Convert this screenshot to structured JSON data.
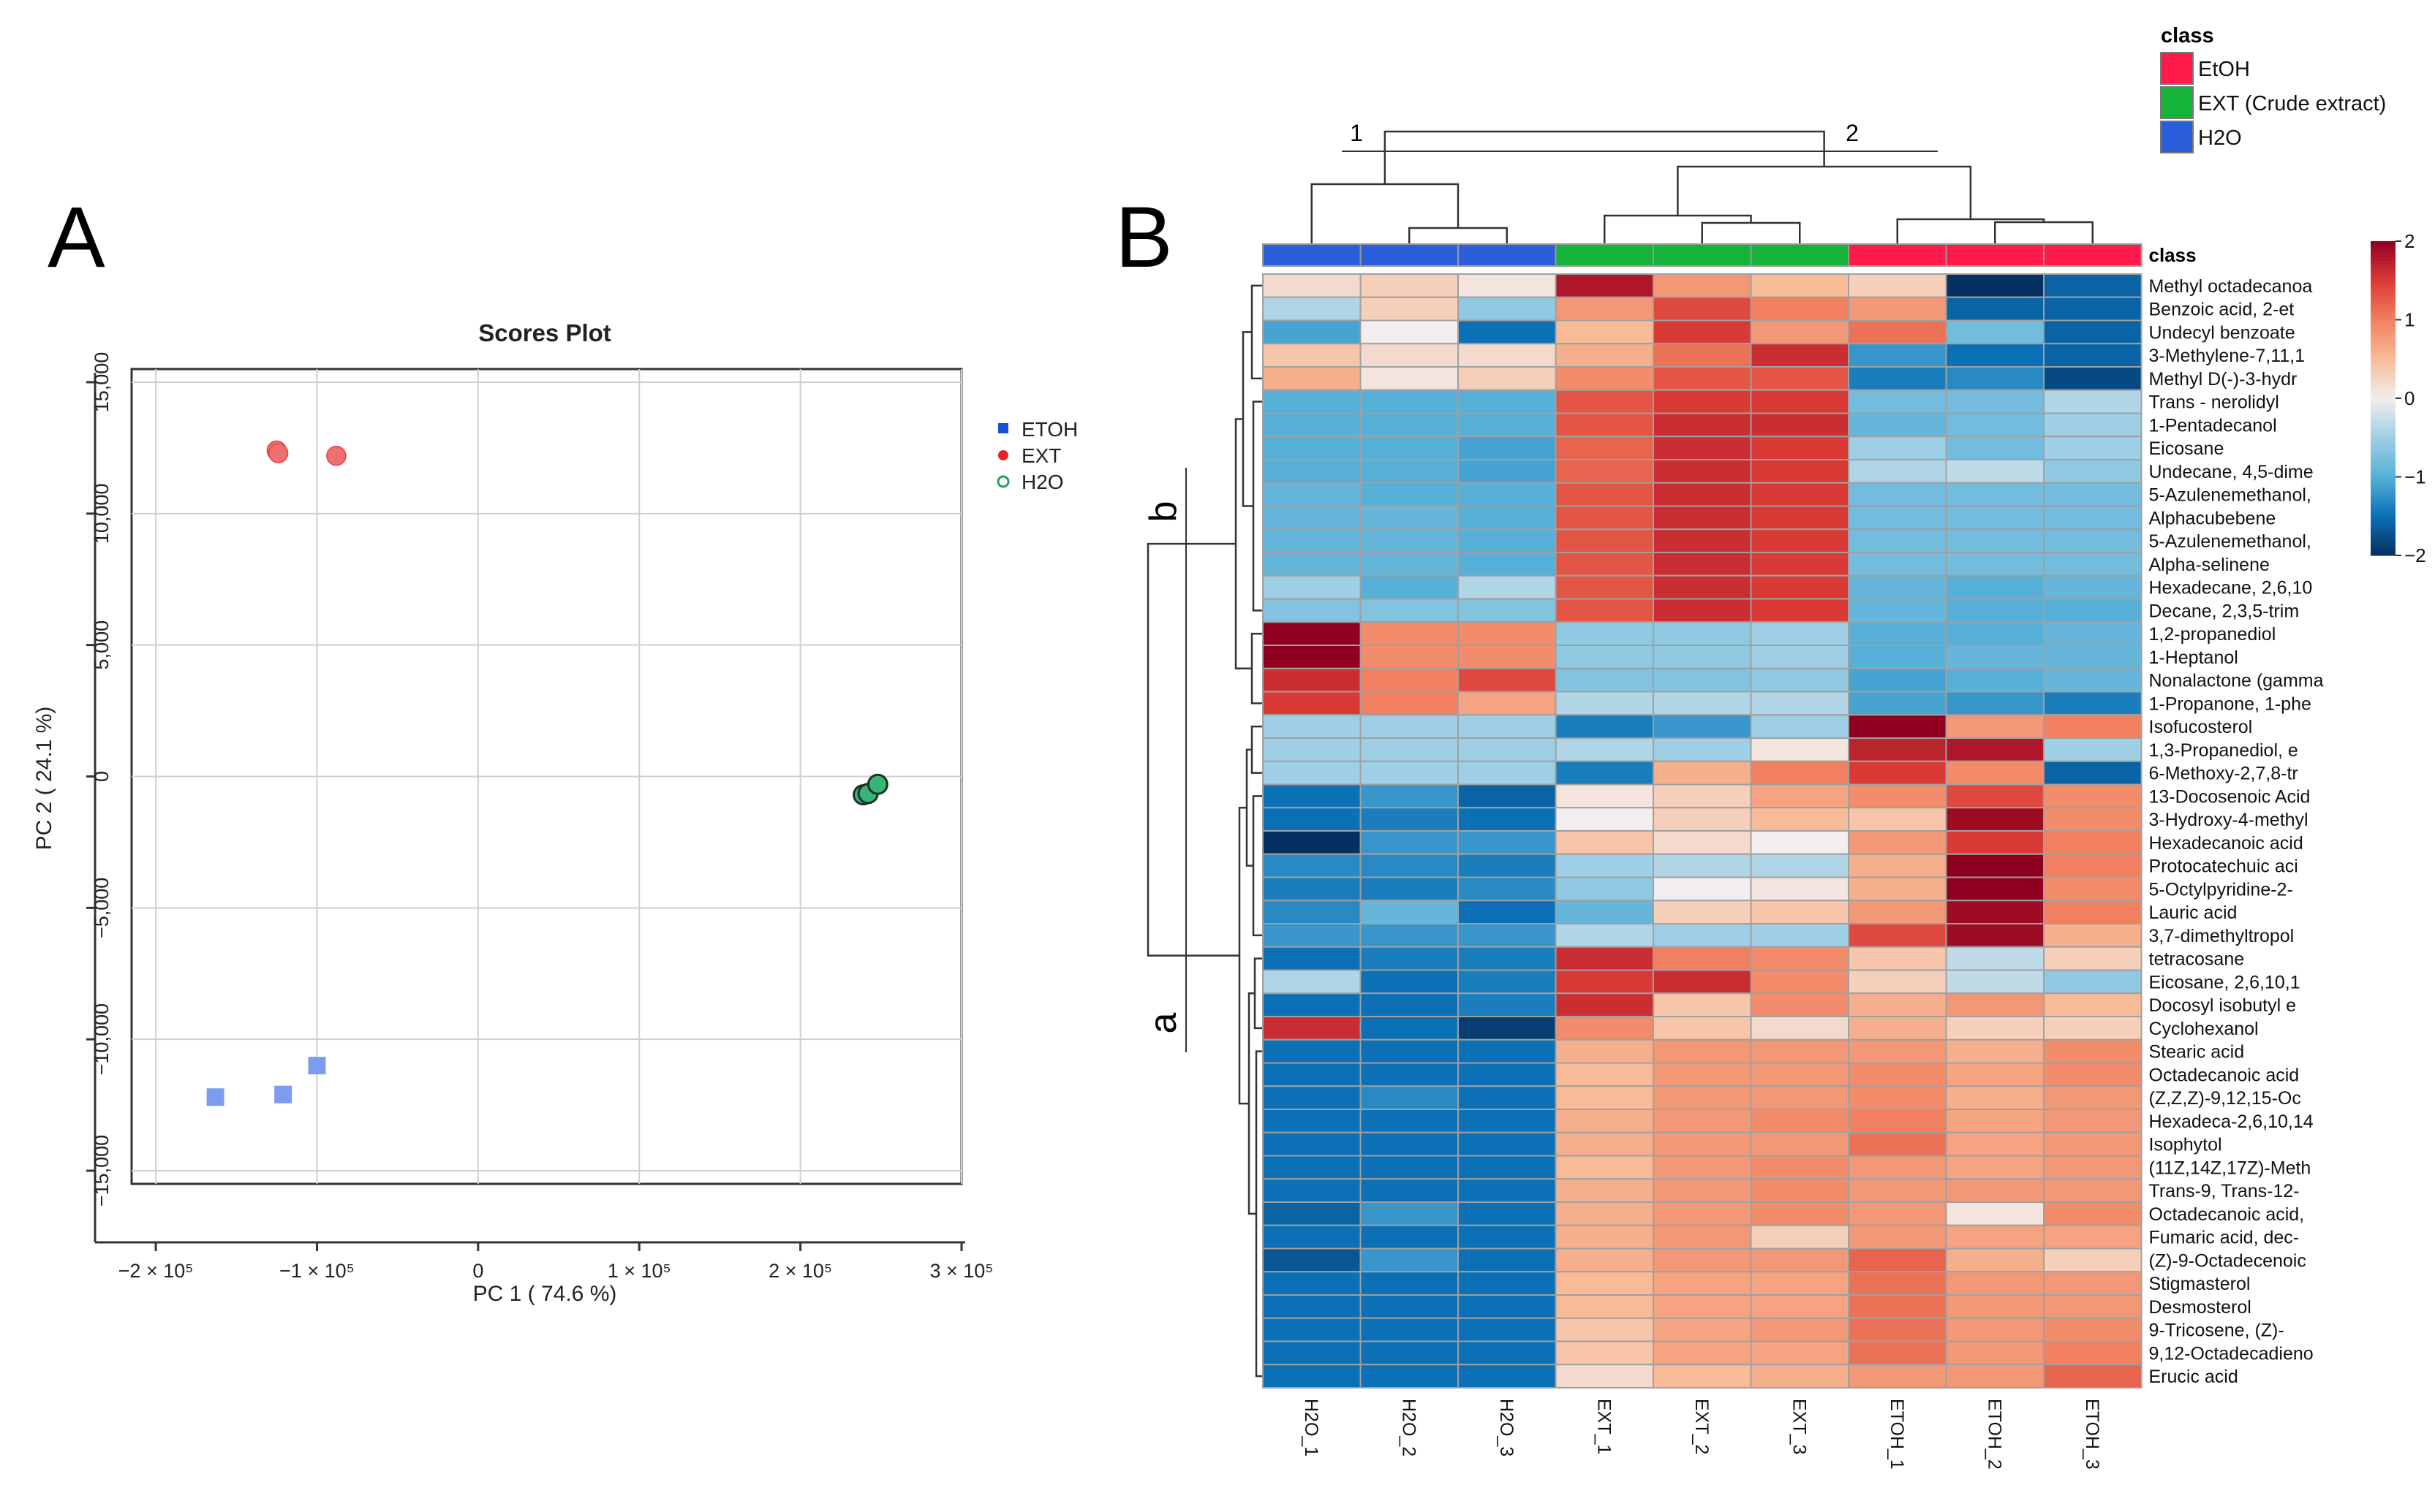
{
  "panel_labels": {
    "a": "A",
    "b": "B"
  },
  "chart_data": [
    {
      "type": "scatter",
      "title": "Scores Plot",
      "xlabel": "PC 1 ( 74.6 %)",
      "ylabel": "PC 2 ( 24.1 %)",
      "xlim": [
        -215000,
        300000
      ],
      "ylim": [
        -15500,
        15500
      ],
      "grid": true,
      "legend_position": "top-right, outside plot",
      "x_ticks": [
        {
          "value": -200000,
          "label": "−2 × 10⁵"
        },
        {
          "value": -100000,
          "label": "−1 × 10⁵"
        },
        {
          "value": 0,
          "label": "0"
        },
        {
          "value": 100000,
          "label": "1 × 10⁵"
        },
        {
          "value": 200000,
          "label": "2 × 10⁵"
        },
        {
          "value": 300000,
          "label": "3 × 10⁵"
        }
      ],
      "y_ticks": [
        {
          "value": 15000,
          "label": "15,000"
        },
        {
          "value": 10000,
          "label": "10,000"
        },
        {
          "value": 5000,
          "label": "5,000"
        },
        {
          "value": 0,
          "label": "0"
        },
        {
          "value": -5000,
          "label": "−5,000"
        },
        {
          "value": -10000,
          "label": "−10,000"
        },
        {
          "value": -15000,
          "label": "−15,000"
        }
      ],
      "series": [
        {
          "name": "ETOH",
          "marker": "square",
          "color": "#1a4fd6",
          "point_color": "#7d9cf0",
          "points": [
            {
              "x": -163000,
              "y": -12200
            },
            {
              "x": -121000,
              "y": -12100
            },
            {
              "x": -100000,
              "y": -11000
            }
          ]
        },
        {
          "name": "EXT",
          "marker": "circle",
          "color": "#e8222a",
          "point_color": "#f07070",
          "points": [
            {
              "x": -125000,
              "y": 12400
            },
            {
              "x": -124000,
              "y": 12300
            },
            {
              "x": -88000,
              "y": 12200
            }
          ]
        },
        {
          "name": "H2O",
          "marker": "open-circle",
          "color": "#22a060",
          "point_color": "#38b478",
          "points": [
            {
              "x": 239000,
              "y": -700
            },
            {
              "x": 242000,
              "y": -650
            },
            {
              "x": 248000,
              "y": -300
            }
          ]
        }
      ]
    },
    {
      "type": "heatmap",
      "color_scale": {
        "min": -2,
        "max": 2,
        "ticks": [
          {
            "value": 2,
            "label": "2"
          },
          {
            "value": 1,
            "label": "1"
          },
          {
            "value": 0,
            "label": "0"
          },
          {
            "value": -1,
            "label": "−1"
          },
          {
            "value": -2,
            "label": "−2"
          }
        ],
        "stops": [
          {
            "value": -2,
            "color": "#053061"
          },
          {
            "value": -1.5,
            "color": "#0b70b5"
          },
          {
            "value": -1,
            "color": "#56b0d8"
          },
          {
            "value": -0.5,
            "color": "#9fcfe4"
          },
          {
            "value": 0,
            "color": "#f2eeee"
          },
          {
            "value": 0.5,
            "color": "#f8bb98"
          },
          {
            "value": 1,
            "color": "#f0805f"
          },
          {
            "value": 1.5,
            "color": "#da3a36"
          },
          {
            "value": 2,
            "color": "#8f0020"
          }
        ]
      },
      "class_header_label": "class",
      "legend": {
        "title": "class",
        "entries": [
          {
            "label": "EtOH",
            "color": "#ff1a4a"
          },
          {
            "label": "EXT (Crude extract)",
            "color": "#16b33a"
          },
          {
            "label": "H2O",
            "color": "#2b5fd9"
          }
        ]
      },
      "columns": [
        "H2O_1",
        "H2O_2",
        "H2O_3",
        "EXT_1",
        "EXT_2",
        "EXT_3",
        "ETOH_1",
        "ETOH_2",
        "ETOH_3"
      ],
      "column_classes": [
        "H2O",
        "H2O",
        "H2O",
        "EXT",
        "EXT",
        "EXT",
        "EtOH",
        "EtOH",
        "EtOH"
      ],
      "class_colors": {
        "H2O": "#2b5fd9",
        "EXT": "#16b33a",
        "EtOH": "#ff1a4a"
      },
      "column_cluster_labels": [
        "1",
        "2"
      ],
      "row_cluster_labels": [
        "b",
        "a"
      ],
      "rows": [
        {
          "name": "Methyl octadecanoa",
          "values": [
            0.2,
            0.3,
            0.1,
            1.8,
            0.8,
            0.5,
            0.3,
            -2.0,
            -1.6
          ]
        },
        {
          "name": "Benzoic acid, 2-et",
          "values": [
            -0.4,
            0.3,
            -0.6,
            0.8,
            1.4,
            1.0,
            0.8,
            -1.6,
            -1.6
          ]
        },
        {
          "name": "Undecyl benzoate",
          "values": [
            -1.1,
            0.0,
            -1.5,
            0.5,
            1.5,
            0.8,
            1.1,
            -0.8,
            -1.6
          ]
        },
        {
          "name": "3-Methylene-7,11,1",
          "values": [
            0.4,
            0.2,
            0.2,
            0.6,
            1.1,
            1.6,
            -1.2,
            -1.5,
            -1.6
          ]
        },
        {
          "name": "Methyl D(-)-3-hydr",
          "values": [
            0.6,
            0.1,
            0.3,
            0.9,
            1.3,
            1.3,
            -1.4,
            -1.3,
            -1.8
          ]
        },
        {
          "name": "Trans - nerolidyl",
          "values": [
            -1.0,
            -1.0,
            -1.0,
            1.3,
            1.5,
            1.5,
            -0.8,
            -0.8,
            -0.4
          ]
        },
        {
          "name": "1-Pentadecanol",
          "values": [
            -1.0,
            -1.0,
            -1.0,
            1.3,
            1.6,
            1.6,
            -0.9,
            -0.8,
            -0.5
          ]
        },
        {
          "name": "Eicosane",
          "values": [
            -1.0,
            -1.0,
            -1.1,
            1.2,
            1.6,
            1.5,
            -0.5,
            -0.8,
            -0.5
          ]
        },
        {
          "name": "Undecane, 4,5-dime",
          "values": [
            -1.0,
            -1.0,
            -1.1,
            1.2,
            1.6,
            1.5,
            -0.4,
            -0.3,
            -0.6
          ]
        },
        {
          "name": "5-Azulenemethanol,",
          "values": [
            -0.9,
            -1.0,
            -1.0,
            1.3,
            1.6,
            1.5,
            -0.8,
            -0.8,
            -0.8
          ]
        },
        {
          "name": "Alphacubebene",
          "values": [
            -0.9,
            -0.9,
            -1.0,
            1.3,
            1.6,
            1.5,
            -0.8,
            -0.8,
            -0.8
          ]
        },
        {
          "name": "5-Azulenemethanol,",
          "values": [
            -0.9,
            -0.9,
            -1.0,
            1.3,
            1.6,
            1.5,
            -0.8,
            -0.8,
            -0.8
          ]
        },
        {
          "name": "Alpha-selinene",
          "values": [
            -0.9,
            -0.9,
            -1.0,
            1.3,
            1.6,
            1.5,
            -0.8,
            -0.8,
            -0.8
          ]
        },
        {
          "name": "Hexadecane, 2,6,10",
          "values": [
            -0.5,
            -1.0,
            -0.4,
            1.3,
            1.6,
            1.5,
            -0.9,
            -1.0,
            -0.9
          ]
        },
        {
          "name": "Decane, 2,3,5-trim",
          "values": [
            -0.7,
            -0.7,
            -0.7,
            1.3,
            1.6,
            1.5,
            -0.9,
            -1.0,
            -1.0
          ]
        },
        {
          "name": "1,2-propanediol",
          "values": [
            2.0,
            0.9,
            0.9,
            -0.6,
            -0.6,
            -0.5,
            -1.0,
            -1.0,
            -0.9
          ]
        },
        {
          "name": "1-Heptanol",
          "values": [
            2.0,
            0.9,
            0.9,
            -0.6,
            -0.6,
            -0.5,
            -1.0,
            -0.9,
            -0.9
          ]
        },
        {
          "name": "Nonalactone (gamma",
          "values": [
            1.6,
            1.0,
            1.4,
            -0.7,
            -0.7,
            -0.6,
            -1.1,
            -1.0,
            -0.9
          ]
        },
        {
          "name": "1-Propanone, 1-phe",
          "values": [
            1.5,
            1.0,
            0.7,
            -0.4,
            -0.4,
            -0.4,
            -1.1,
            -1.2,
            -1.4
          ]
        },
        {
          "name": "Isofucosterol",
          "values": [
            -0.5,
            -0.5,
            -0.5,
            -1.4,
            -1.2,
            -0.5,
            2.0,
            0.8,
            1.0
          ]
        },
        {
          "name": "1,3-Propanediol, e",
          "values": [
            -0.5,
            -0.5,
            -0.5,
            -0.4,
            -0.5,
            0.1,
            1.7,
            1.8,
            -0.5
          ]
        },
        {
          "name": "6-Methoxy-2,7,8-tr",
          "values": [
            -0.5,
            -0.5,
            -0.5,
            -1.4,
            0.6,
            1.0,
            1.5,
            0.9,
            -1.6
          ]
        },
        {
          "name": "13-Docosenoic Acid",
          "values": [
            -1.5,
            -1.2,
            -1.6,
            0.1,
            0.3,
            0.7,
            0.9,
            1.4,
            0.9
          ]
        },
        {
          "name": "3-Hydroxy-4-methyl",
          "values": [
            -1.5,
            -1.4,
            -1.5,
            0.0,
            0.3,
            0.5,
            0.4,
            1.9,
            0.9
          ]
        },
        {
          "name": "Hexadecanoic acid",
          "values": [
            -2.0,
            -1.2,
            -1.2,
            0.4,
            0.2,
            0.0,
            0.8,
            1.5,
            1.0
          ]
        },
        {
          "name": "Protocatechuic aci",
          "values": [
            -1.3,
            -1.3,
            -1.4,
            -0.5,
            -0.4,
            -0.4,
            0.6,
            2.0,
            1.0
          ]
        },
        {
          "name": "5-Octylpyridine-2-",
          "values": [
            -1.4,
            -1.4,
            -1.3,
            -0.6,
            0.0,
            0.1,
            0.6,
            2.0,
            0.9
          ]
        },
        {
          "name": "Lauric acid",
          "values": [
            -1.3,
            -0.9,
            -1.5,
            -0.9,
            0.3,
            0.4,
            0.8,
            1.9,
            1.0
          ]
        },
        {
          "name": "3,7-dimethyltropol",
          "values": [
            -1.2,
            -1.2,
            -1.2,
            -0.4,
            -0.5,
            -0.5,
            1.4,
            1.9,
            0.6
          ]
        },
        {
          "name": "tetracosane",
          "values": [
            -1.5,
            -1.4,
            -1.4,
            1.6,
            1.0,
            0.9,
            0.4,
            -0.3,
            0.3
          ]
        },
        {
          "name": "Eicosane, 2,6,10,1",
          "values": [
            -0.4,
            -1.5,
            -1.4,
            1.5,
            1.6,
            0.9,
            0.3,
            -0.3,
            -0.6
          ]
        },
        {
          "name": "Docosyl isobutyl e",
          "values": [
            -1.5,
            -1.5,
            -1.4,
            1.6,
            0.4,
            0.9,
            0.6,
            0.8,
            0.5
          ]
        },
        {
          "name": "Cyclohexanol",
          "values": [
            1.6,
            -1.5,
            -1.9,
            0.9,
            0.4,
            0.2,
            0.6,
            0.3,
            0.3
          ]
        },
        {
          "name": "Stearic acid",
          "values": [
            -1.5,
            -1.5,
            -1.5,
            0.6,
            0.8,
            0.8,
            0.8,
            0.6,
            0.9
          ]
        },
        {
          "name": "Octadecanoic acid",
          "values": [
            -1.5,
            -1.5,
            -1.5,
            0.5,
            0.8,
            0.8,
            0.9,
            0.7,
            0.9
          ]
        },
        {
          "name": "(Z,Z,Z)-9,12,15-Oc",
          "values": [
            -1.5,
            -1.3,
            -1.5,
            0.5,
            0.8,
            0.8,
            0.9,
            0.6,
            0.8
          ]
        },
        {
          "name": "Hexadeca-2,6,10,14",
          "values": [
            -1.5,
            -1.5,
            -1.5,
            0.6,
            0.8,
            0.9,
            1.0,
            0.7,
            0.8
          ]
        },
        {
          "name": "Isophytol",
          "values": [
            -1.5,
            -1.5,
            -1.5,
            0.6,
            0.8,
            0.8,
            1.1,
            0.7,
            0.8
          ]
        },
        {
          "name": "(11Z,14Z,17Z)-Meth",
          "values": [
            -1.5,
            -1.5,
            -1.5,
            0.5,
            0.8,
            0.9,
            0.8,
            0.7,
            0.8
          ]
        },
        {
          "name": "Trans-9, Trans-12-",
          "values": [
            -1.5,
            -1.5,
            -1.5,
            0.6,
            0.8,
            0.9,
            0.8,
            0.8,
            0.8
          ]
        },
        {
          "name": "Octadecanoic acid,",
          "values": [
            -1.6,
            -1.2,
            -1.5,
            0.6,
            0.8,
            0.9,
            0.8,
            0.1,
            0.9
          ]
        },
        {
          "name": "Fumaric acid, dec-",
          "values": [
            -1.5,
            -1.5,
            -1.5,
            0.6,
            0.8,
            0.3,
            0.8,
            0.7,
            0.7
          ]
        },
        {
          "name": "(Z)-9-Octadecenoic",
          "values": [
            -1.7,
            -1.2,
            -1.5,
            0.6,
            0.8,
            0.8,
            1.2,
            0.6,
            0.3
          ]
        },
        {
          "name": "Stigmasterol",
          "values": [
            -1.5,
            -1.5,
            -1.5,
            0.5,
            0.7,
            0.7,
            1.1,
            0.8,
            0.8
          ]
        },
        {
          "name": "Desmosterol",
          "values": [
            -1.5,
            -1.5,
            -1.5,
            0.5,
            0.7,
            0.7,
            1.1,
            0.8,
            0.8
          ]
        },
        {
          "name": "9-Tricosene, (Z)-",
          "values": [
            -1.5,
            -1.5,
            -1.5,
            0.4,
            0.7,
            0.8,
            1.1,
            0.8,
            0.9
          ]
        },
        {
          "name": "9,12-Octadecadieno",
          "values": [
            -1.5,
            -1.5,
            -1.5,
            0.4,
            0.7,
            0.7,
            1.1,
            0.8,
            1.0
          ]
        },
        {
          "name": "Erucic acid",
          "values": [
            -1.5,
            -1.5,
            -1.5,
            0.2,
            0.5,
            0.6,
            0.8,
            0.8,
            1.2
          ]
        }
      ]
    }
  ]
}
